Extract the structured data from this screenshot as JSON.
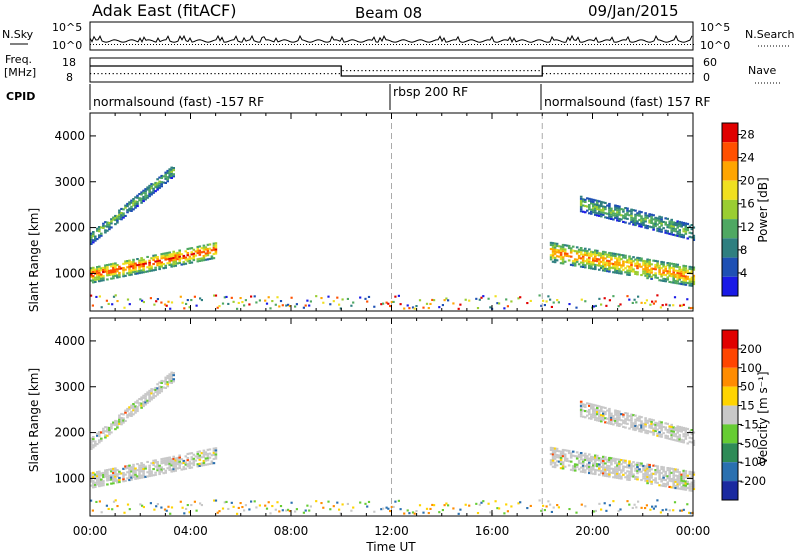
{
  "header": {
    "title": "Adak East (fitACF)",
    "beam": "Beam 08",
    "date": "09/Jan/2015"
  },
  "panel_labels": {
    "nsky": "N.Sky",
    "nsearch": "N.Search",
    "freq_line1": "Freq.",
    "freq_line2": "[MHz]",
    "nave": "Nave",
    "cpid": "CPID"
  },
  "mini_axes": {
    "nsky_ticks": [
      "10^5",
      "10^0"
    ],
    "nsearch_ticks": [
      "10^5",
      "10^0"
    ],
    "freq_ticks": [
      "18",
      "8"
    ],
    "nave_ticks": [
      "60",
      "0"
    ]
  },
  "cpid_segments": [
    {
      "label": "normalsound (fast) -157 RF",
      "start": 0,
      "end": 12
    },
    {
      "label": "rbsp 200 RF",
      "start": 12,
      "end": 18
    },
    {
      "label": "normalsound (fast) 157 RF",
      "start": 18,
      "end": 24
    }
  ],
  "chart_data": [
    {
      "type": "heatmap",
      "name": "power",
      "ylabel": "Slant Range [km]",
      "xlabel": "Time UT",
      "x_ticks": [
        "00:00",
        "04:00",
        "08:00",
        "12:00",
        "16:00",
        "20:00",
        "00:00"
      ],
      "xlim": [
        0,
        24
      ],
      "ylim": [
        180,
        4500
      ],
      "y_ticks": [
        1000,
        2000,
        3000,
        4000
      ],
      "colorbar_label": "Power [dB]",
      "colorbar_ticks": [
        "4",
        "8",
        "12",
        "16",
        "20",
        "24",
        "28"
      ],
      "colorbar_range": [
        0,
        30
      ],
      "colors": [
        "#1a1ae6",
        "#1e50b4",
        "#2f7f80",
        "#4fa862",
        "#9acd32",
        "#f0e020",
        "#ffa500",
        "#ff5000",
        "#e00000"
      ],
      "cpid_boundaries": [
        12,
        18
      ],
      "echo_bands": [
        {
          "t0": 0.0,
          "t1": 5.0,
          "r_start": 950,
          "r_slope": 110,
          "width": 350,
          "level": 26
        },
        {
          "t0": 0.0,
          "t1": 3.3,
          "r_start": 1750,
          "r_slope": 450,
          "width": 260,
          "level": 14
        },
        {
          "t0": 18.3,
          "t1": 24.0,
          "r_start": 1450,
          "r_slope": -95,
          "width": 420,
          "level": 24
        },
        {
          "t0": 19.5,
          "t1": 24.0,
          "r_start": 2500,
          "r_slope": -140,
          "width": 330,
          "level": 14
        }
      ]
    },
    {
      "type": "heatmap",
      "name": "velocity",
      "ylabel": "Slant Range [km]",
      "xlabel": "Time UT",
      "x_ticks": [
        "00:00",
        "04:00",
        "08:00",
        "12:00",
        "16:00",
        "20:00",
        "00:00"
      ],
      "xlim": [
        0,
        24
      ],
      "ylim": [
        180,
        4500
      ],
      "y_ticks": [
        1000,
        2000,
        3000,
        4000
      ],
      "colorbar_label": "Velocity [m s⁻¹]",
      "colorbar_ticks": [
        "200",
        "100",
        "50",
        "15",
        "-15",
        "-50",
        "-100",
        "-200"
      ],
      "colors": [
        "#1a2aa0",
        "#2a70b0",
        "#2e8b57",
        "#66cc33",
        "#c8c8c8",
        "#ffd400",
        "#ff8c00",
        "#ff4500",
        "#e00000"
      ],
      "cpid_boundaries": [
        12,
        18
      ],
      "echo_bands": [
        {
          "t0": 0.0,
          "t1": 5.0,
          "r_start": 950,
          "r_slope": 110,
          "width": 350,
          "level": 15
        },
        {
          "t0": 0.0,
          "t1": 3.3,
          "r_start": 1750,
          "r_slope": 450,
          "width": 260,
          "level": 15
        },
        {
          "t0": 18.3,
          "t1": 24.0,
          "r_start": 1450,
          "r_slope": -95,
          "width": 420,
          "level": 15
        },
        {
          "t0": 19.5,
          "t1": 24.0,
          "r_start": 2500,
          "r_slope": -140,
          "width": 330,
          "level": 15
        }
      ]
    }
  ]
}
